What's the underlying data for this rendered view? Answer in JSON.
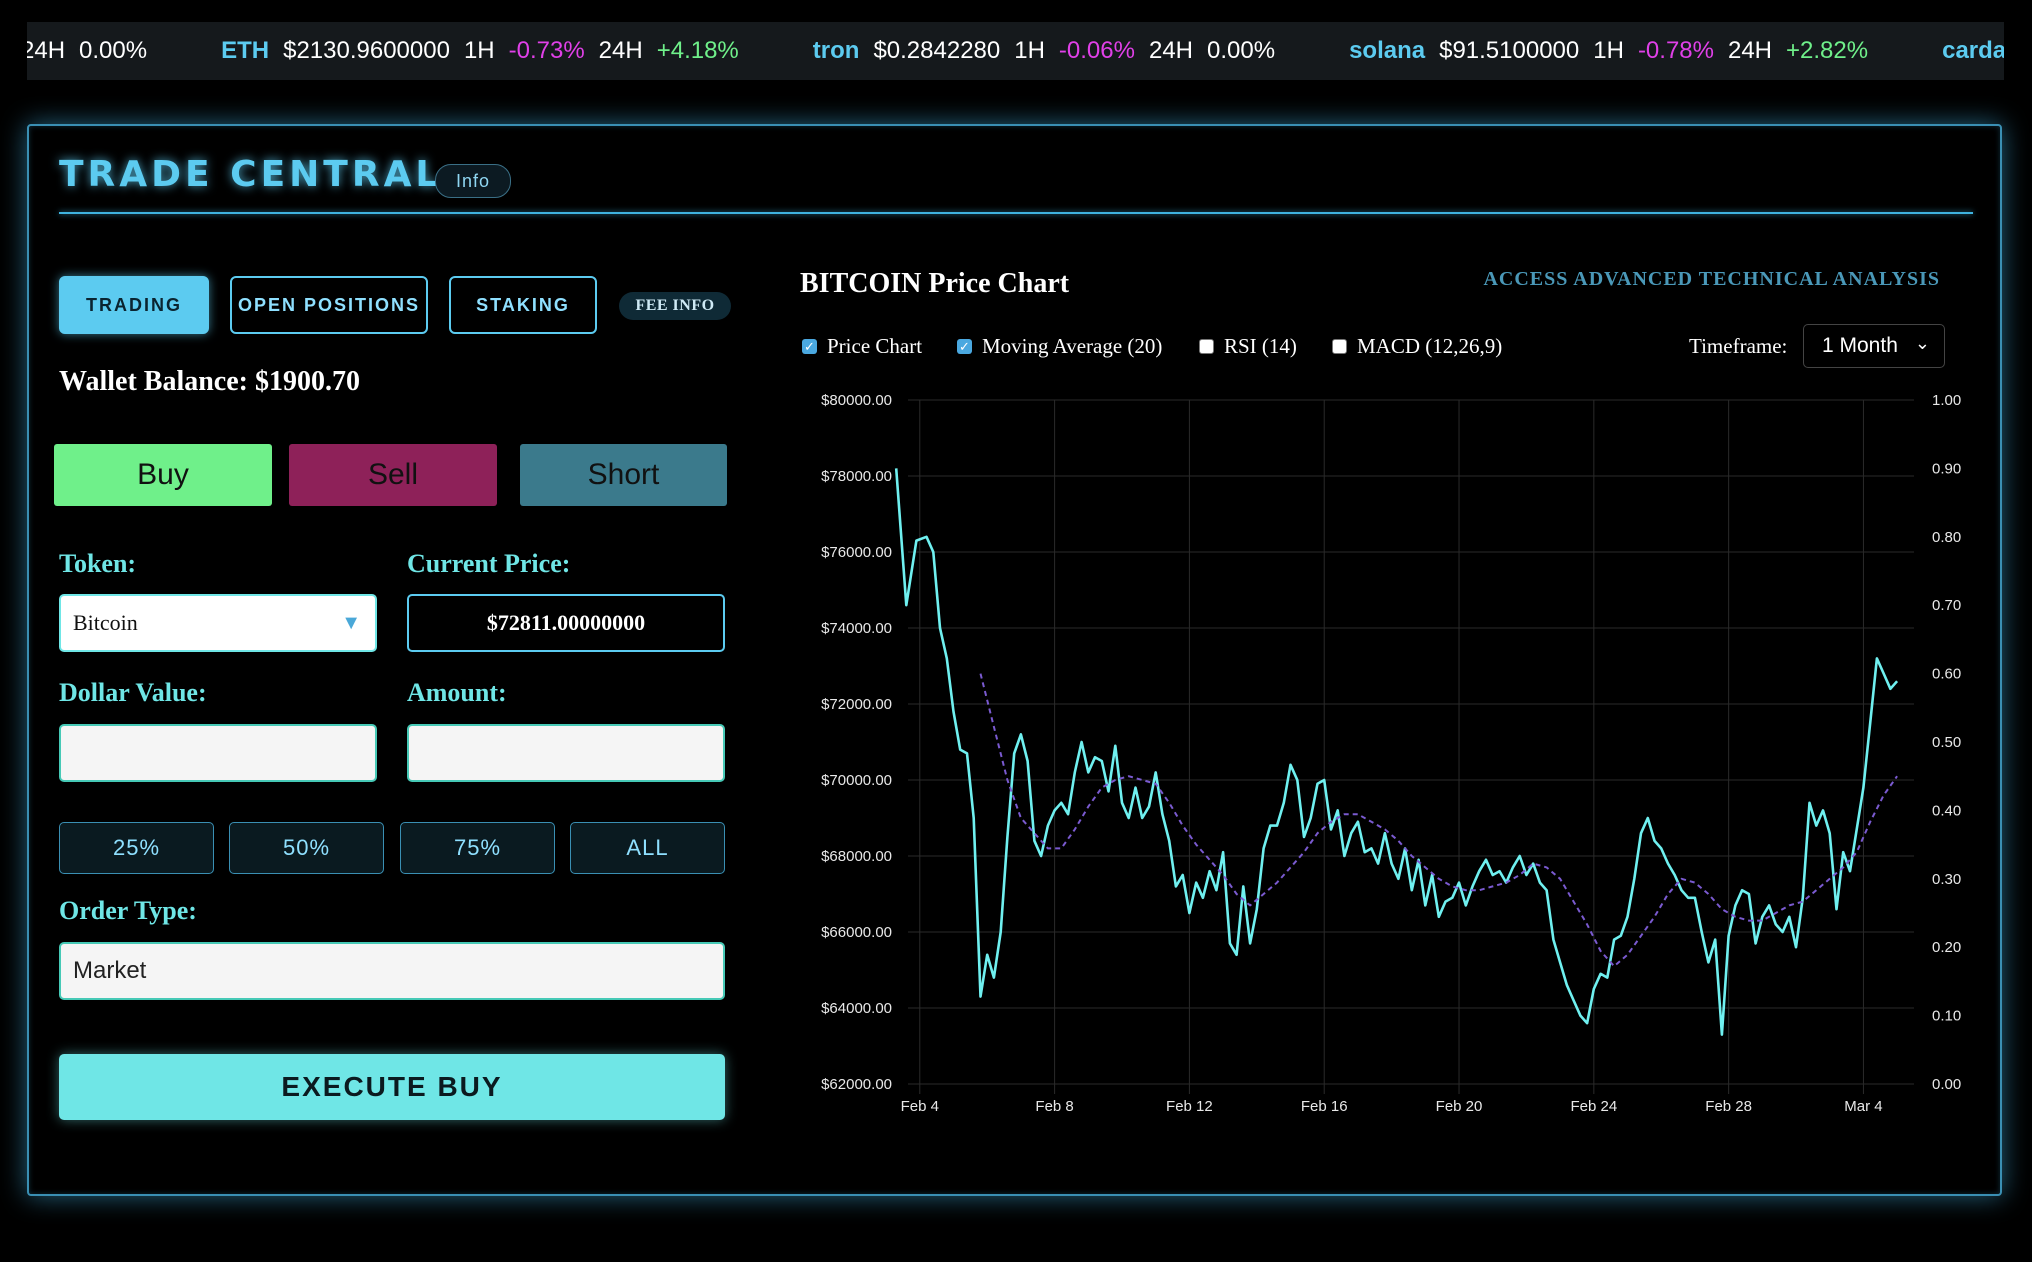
{
  "ticker": [
    {
      "partial": true,
      "h24_label": "24H",
      "h24": "0.00%",
      "h24_class": "zero"
    },
    {
      "symbol": "ETH",
      "price": "$2130.9600000",
      "h1_label": "1H",
      "h1": "-0.73%",
      "h1_class": "neg",
      "h24_label": "24H",
      "h24": "+4.18%",
      "h24_class": "pos"
    },
    {
      "symbol": "tron",
      "price": "$0.2842280",
      "h1_label": "1H",
      "h1": "-0.06%",
      "h1_class": "neg",
      "h24_label": "24H",
      "h24": "0.00%",
      "h24_class": "zero"
    },
    {
      "symbol": "solana",
      "price": "$91.5100000",
      "h1_label": "1H",
      "h1": "-0.78%",
      "h1_class": "neg",
      "h24_label": "24H",
      "h24": "+2.82%",
      "h24_class": "pos"
    },
    {
      "symbol": "cardano",
      "price": "",
      "partial_end": true
    }
  ],
  "header": {
    "title": "TRADE CENTRAL",
    "info_label": "Info"
  },
  "tabs": {
    "trading": "TRADING",
    "open_positions": "OPEN POSITIONS",
    "staking": "STAKING",
    "fee_info": "FEE INFO"
  },
  "wallet": {
    "text": "Wallet Balance: $1900.70"
  },
  "actions": {
    "buy": "Buy",
    "sell": "Sell",
    "short": "Short"
  },
  "form": {
    "token_label": "Token:",
    "token_value": "Bitcoin",
    "current_price_label": "Current Price:",
    "current_price": "$72811.00000000",
    "dollar_label": "Dollar Value:",
    "dollar_value": "",
    "amount_label": "Amount:",
    "amount_value": "",
    "pct_buttons": [
      "25%",
      "50%",
      "75%",
      "ALL"
    ],
    "order_type_label": "Order Type:",
    "order_type": "Market",
    "execute": "EXECUTE BUY"
  },
  "chart_panel": {
    "title": "BITCOIN Price Chart",
    "advanced_link": "ACCESS ADVANCED TECHNICAL ANALYSIS",
    "options": [
      {
        "label": "Price Chart",
        "checked": true
      },
      {
        "label": "Moving Average (20)",
        "checked": true
      },
      {
        "label": "RSI (14)",
        "checked": false
      },
      {
        "label": "MACD (12,26,9)",
        "checked": false
      }
    ],
    "timeframe_label": "Timeframe:",
    "timeframe_value": "1 Month"
  },
  "colors": {
    "price_line": "#6ff0f0",
    "ma_line": "#7a5ad0",
    "accent": "#5ccbf0"
  },
  "chart_data": {
    "type": "line",
    "x_ticks": [
      "Feb 4",
      "Feb 8",
      "Feb 12",
      "Feb 16",
      "Feb 20",
      "Feb 24",
      "Feb 28",
      "Mar 4"
    ],
    "y_ticks": [
      "$80000.00",
      "$78000.00",
      "$76000.00",
      "$74000.00",
      "$72000.00",
      "$70000.00",
      "$68000.00",
      "$66000.00",
      "$64000.00",
      "$62000.00"
    ],
    "y2_ticks": [
      "1.00",
      "0.90",
      "0.80",
      "0.70",
      "0.60",
      "0.50",
      "0.40",
      "0.30",
      "0.20",
      "0.10",
      "0.00"
    ],
    "ylim": [
      62000,
      80000
    ],
    "y2lim": [
      0,
      1
    ],
    "xlim": [
      3.65,
      33.5
    ],
    "series": [
      {
        "name": "Price Chart",
        "points": [
          [
            3.3,
            78200
          ],
          [
            3.6,
            74600
          ],
          [
            3.9,
            76300
          ],
          [
            4.2,
            76400
          ],
          [
            4.4,
            76000
          ],
          [
            4.6,
            74000
          ],
          [
            4.8,
            73200
          ],
          [
            5.0,
            71800
          ],
          [
            5.2,
            70800
          ],
          [
            5.4,
            70700
          ],
          [
            5.6,
            69000
          ],
          [
            5.8,
            64300
          ],
          [
            6.0,
            65400
          ],
          [
            6.2,
            64800
          ],
          [
            6.4,
            66000
          ],
          [
            6.6,
            68500
          ],
          [
            6.8,
            70700
          ],
          [
            7.0,
            71200
          ],
          [
            7.2,
            70500
          ],
          [
            7.4,
            68400
          ],
          [
            7.6,
            68000
          ],
          [
            7.8,
            68800
          ],
          [
            8.0,
            69200
          ],
          [
            8.2,
            69400
          ],
          [
            8.4,
            69100
          ],
          [
            8.6,
            70200
          ],
          [
            8.8,
            71000
          ],
          [
            9.0,
            70200
          ],
          [
            9.2,
            70600
          ],
          [
            9.4,
            70500
          ],
          [
            9.6,
            69700
          ],
          [
            9.8,
            70900
          ],
          [
            10.0,
            69400
          ],
          [
            10.2,
            69000
          ],
          [
            10.4,
            69800
          ],
          [
            10.6,
            69000
          ],
          [
            10.8,
            69300
          ],
          [
            11.0,
            70200
          ],
          [
            11.2,
            69100
          ],
          [
            11.4,
            68400
          ],
          [
            11.6,
            67200
          ],
          [
            11.8,
            67500
          ],
          [
            12.0,
            66500
          ],
          [
            12.2,
            67300
          ],
          [
            12.4,
            66900
          ],
          [
            12.6,
            67600
          ],
          [
            12.8,
            67100
          ],
          [
            13.0,
            68100
          ],
          [
            13.2,
            65700
          ],
          [
            13.4,
            65400
          ],
          [
            13.6,
            67200
          ],
          [
            13.8,
            65700
          ],
          [
            14.0,
            66600
          ],
          [
            14.2,
            68200
          ],
          [
            14.4,
            68800
          ],
          [
            14.6,
            68800
          ],
          [
            14.8,
            69400
          ],
          [
            15.0,
            70400
          ],
          [
            15.2,
            70000
          ],
          [
            15.4,
            68500
          ],
          [
            15.6,
            69000
          ],
          [
            15.8,
            69900
          ],
          [
            16.0,
            70000
          ],
          [
            16.2,
            68700
          ],
          [
            16.4,
            69200
          ],
          [
            16.6,
            68000
          ],
          [
            16.8,
            68600
          ],
          [
            17.0,
            68900
          ],
          [
            17.2,
            68100
          ],
          [
            17.4,
            68200
          ],
          [
            17.6,
            67800
          ],
          [
            17.8,
            68600
          ],
          [
            18.0,
            67800
          ],
          [
            18.2,
            67400
          ],
          [
            18.4,
            68200
          ],
          [
            18.6,
            67100
          ],
          [
            18.8,
            67900
          ],
          [
            19.0,
            66700
          ],
          [
            19.2,
            67500
          ],
          [
            19.4,
            66400
          ],
          [
            19.6,
            66800
          ],
          [
            19.8,
            66900
          ],
          [
            20.0,
            67300
          ],
          [
            20.2,
            66700
          ],
          [
            20.4,
            67200
          ],
          [
            20.6,
            67600
          ],
          [
            20.8,
            67900
          ],
          [
            21.0,
            67500
          ],
          [
            21.2,
            67600
          ],
          [
            21.4,
            67300
          ],
          [
            21.6,
            67700
          ],
          [
            21.8,
            68000
          ],
          [
            22.0,
            67500
          ],
          [
            22.2,
            67800
          ],
          [
            22.4,
            67300
          ],
          [
            22.6,
            67100
          ],
          [
            22.8,
            65800
          ],
          [
            23.0,
            65200
          ],
          [
            23.2,
            64600
          ],
          [
            23.4,
            64200
          ],
          [
            23.6,
            63800
          ],
          [
            23.8,
            63600
          ],
          [
            24.0,
            64500
          ],
          [
            24.2,
            64900
          ],
          [
            24.4,
            64800
          ],
          [
            24.6,
            65800
          ],
          [
            24.8,
            65900
          ],
          [
            25.0,
            66400
          ],
          [
            25.2,
            67400
          ],
          [
            25.4,
            68600
          ],
          [
            25.6,
            69000
          ],
          [
            25.8,
            68400
          ],
          [
            26.0,
            68200
          ],
          [
            26.2,
            67800
          ],
          [
            26.4,
            67500
          ],
          [
            26.6,
            67100
          ],
          [
            26.8,
            66900
          ],
          [
            27.0,
            66900
          ],
          [
            27.2,
            66000
          ],
          [
            27.4,
            65200
          ],
          [
            27.6,
            65800
          ],
          [
            27.8,
            63300
          ],
          [
            28.0,
            65900
          ],
          [
            28.2,
            66700
          ],
          [
            28.4,
            67100
          ],
          [
            28.6,
            67000
          ],
          [
            28.8,
            65700
          ],
          [
            29.0,
            66400
          ],
          [
            29.2,
            66700
          ],
          [
            29.4,
            66200
          ],
          [
            29.6,
            66000
          ],
          [
            29.8,
            66400
          ],
          [
            30.0,
            65600
          ],
          [
            30.2,
            66900
          ],
          [
            30.4,
            69400
          ],
          [
            30.6,
            68800
          ],
          [
            30.8,
            69200
          ],
          [
            31.0,
            68600
          ],
          [
            31.2,
            66600
          ],
          [
            31.4,
            68100
          ],
          [
            31.6,
            67600
          ],
          [
            31.8,
            68700
          ],
          [
            32.0,
            69800
          ],
          [
            32.2,
            71500
          ],
          [
            32.4,
            73200
          ],
          [
            32.6,
            72800
          ],
          [
            32.8,
            72400
          ],
          [
            33.0,
            72600
          ]
        ]
      },
      {
        "name": "Moving Average (20)",
        "points": [
          [
            5.8,
            72800
          ],
          [
            6.2,
            71400
          ],
          [
            6.6,
            70000
          ],
          [
            7.0,
            69000
          ],
          [
            7.4,
            68600
          ],
          [
            7.8,
            68200
          ],
          [
            8.2,
            68200
          ],
          [
            8.6,
            68700
          ],
          [
            9.0,
            69300
          ],
          [
            9.4,
            69800
          ],
          [
            9.8,
            70000
          ],
          [
            10.2,
            70100
          ],
          [
            10.6,
            70000
          ],
          [
            11.0,
            69900
          ],
          [
            11.4,
            69400
          ],
          [
            11.8,
            68800
          ],
          [
            12.2,
            68300
          ],
          [
            12.6,
            67900
          ],
          [
            13.0,
            67500
          ],
          [
            13.4,
            67000
          ],
          [
            13.8,
            66700
          ],
          [
            14.2,
            67000
          ],
          [
            14.6,
            67300
          ],
          [
            15.0,
            67700
          ],
          [
            15.4,
            68100
          ],
          [
            15.8,
            68600
          ],
          [
            16.2,
            68900
          ],
          [
            16.6,
            69100
          ],
          [
            17.0,
            69100
          ],
          [
            17.4,
            68900
          ],
          [
            17.8,
            68700
          ],
          [
            18.2,
            68400
          ],
          [
            18.6,
            68000
          ],
          [
            19.0,
            67700
          ],
          [
            19.4,
            67400
          ],
          [
            19.8,
            67200
          ],
          [
            20.2,
            67100
          ],
          [
            20.6,
            67100
          ],
          [
            21.0,
            67200
          ],
          [
            21.4,
            67300
          ],
          [
            21.8,
            67500
          ],
          [
            22.2,
            67800
          ],
          [
            22.6,
            67700
          ],
          [
            23.0,
            67400
          ],
          [
            23.4,
            66800
          ],
          [
            23.8,
            66200
          ],
          [
            24.2,
            65500
          ],
          [
            24.6,
            65100
          ],
          [
            25.0,
            65400
          ],
          [
            25.4,
            65900
          ],
          [
            25.8,
            66400
          ],
          [
            26.2,
            67000
          ],
          [
            26.6,
            67400
          ],
          [
            27.0,
            67300
          ],
          [
            27.4,
            67000
          ],
          [
            27.8,
            66600
          ],
          [
            28.2,
            66400
          ],
          [
            28.6,
            66300
          ],
          [
            29.0,
            66300
          ],
          [
            29.4,
            66500
          ],
          [
            29.8,
            66700
          ],
          [
            30.2,
            66800
          ],
          [
            30.6,
            67100
          ],
          [
            31.0,
            67400
          ],
          [
            31.4,
            67700
          ],
          [
            31.8,
            68100
          ],
          [
            32.2,
            68900
          ],
          [
            32.6,
            69600
          ],
          [
            33.0,
            70100
          ]
        ]
      }
    ]
  }
}
